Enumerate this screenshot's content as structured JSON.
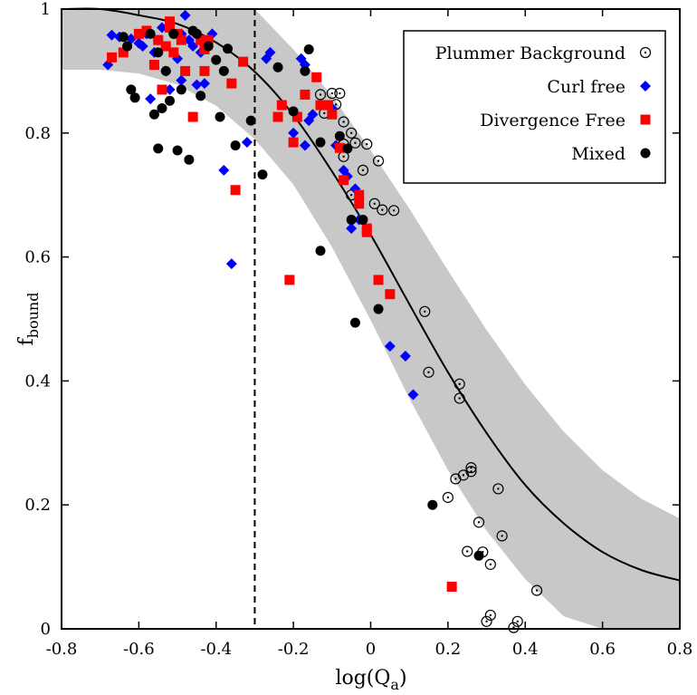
{
  "chart_data": {
    "type": "scatter",
    "xlabel_main": "log(Q",
    "xlabel_sub": "a",
    "xlabel_close": ")",
    "ylabel_main": "f",
    "ylabel_sub": "bound",
    "xlim": [
      -0.8,
      0.8
    ],
    "ylim": [
      0,
      1
    ],
    "x_ticks": [
      "-0.8",
      "-0.6",
      "-0.4",
      "-0.2",
      "0",
      "0.2",
      "0.4",
      "0.6",
      "0.8"
    ],
    "y_ticks": [
      "0",
      "0.2",
      "0.4",
      "0.6",
      "0.8",
      "1"
    ],
    "grid": false,
    "legend_position": "top-right",
    "vertical_line_x": -0.3,
    "fit_curve": {
      "description": "model curve with shaded uncertainty band",
      "x": [
        -0.8,
        -0.7,
        -0.6,
        -0.5,
        -0.4,
        -0.3,
        -0.2,
        -0.1,
        0.0,
        0.1,
        0.2,
        0.3,
        0.4,
        0.5,
        0.6,
        0.7,
        0.8
      ],
      "y": [
        1.0,
        1.0,
        0.99,
        0.976,
        0.946,
        0.899,
        0.829,
        0.738,
        0.636,
        0.524,
        0.414,
        0.316,
        0.232,
        0.17,
        0.124,
        0.095,
        0.078
      ],
      "band_upper": [
        1.0,
        1.0,
        1.0,
        1.0,
        1.0,
        1.0,
        0.935,
        0.86,
        0.772,
        0.678,
        0.578,
        0.482,
        0.394,
        0.318,
        0.256,
        0.21,
        0.178
      ],
      "band_lower": [
        0.902,
        0.902,
        0.896,
        0.878,
        0.844,
        0.79,
        0.717,
        0.616,
        0.498,
        0.372,
        0.256,
        0.158,
        0.08,
        0.02,
        0.0,
        0.0,
        0.0
      ],
      "color": "#000000",
      "band_color": "#c8c8c8"
    },
    "series": [
      {
        "name": "Plummer Background",
        "marker": "circle-dot",
        "color": "#000000",
        "points": [
          [
            -0.13,
            0.862
          ],
          [
            -0.1,
            0.864
          ],
          [
            -0.08,
            0.864
          ],
          [
            -0.09,
            0.846
          ],
          [
            -0.12,
            0.832
          ],
          [
            -0.07,
            0.818
          ],
          [
            -0.05,
            0.8
          ],
          [
            -0.07,
            0.782
          ],
          [
            -0.04,
            0.784
          ],
          [
            -0.01,
            0.782
          ],
          [
            -0.07,
            0.762
          ],
          [
            0.02,
            0.755
          ],
          [
            -0.02,
            0.74
          ],
          [
            -0.05,
            0.7
          ],
          [
            0.01,
            0.686
          ],
          [
            0.03,
            0.676
          ],
          [
            0.06,
            0.675
          ],
          [
            0.14,
            0.512
          ],
          [
            0.15,
            0.414
          ],
          [
            0.23,
            0.395
          ],
          [
            0.23,
            0.372
          ],
          [
            0.26,
            0.26
          ],
          [
            0.26,
            0.254
          ],
          [
            0.24,
            0.248
          ],
          [
            0.22,
            0.242
          ],
          [
            0.33,
            0.226
          ],
          [
            0.2,
            0.212
          ],
          [
            0.28,
            0.172
          ],
          [
            0.34,
            0.15
          ],
          [
            0.25,
            0.125
          ],
          [
            0.29,
            0.124
          ],
          [
            0.31,
            0.104
          ],
          [
            0.43,
            0.062
          ],
          [
            0.31,
            0.022
          ],
          [
            0.3,
            0.012
          ],
          [
            0.38,
            0.012
          ],
          [
            0.37,
            0.002
          ]
        ]
      },
      {
        "name": "Curl free",
        "marker": "diamond",
        "color": "#0000ff",
        "points": [
          [
            -0.68,
            0.91
          ],
          [
            -0.67,
            0.958
          ],
          [
            -0.65,
            0.955
          ],
          [
            -0.62,
            0.952
          ],
          [
            -0.6,
            0.945
          ],
          [
            -0.58,
            0.96
          ],
          [
            -0.56,
            0.93
          ],
          [
            -0.55,
            0.95
          ],
          [
            -0.54,
            0.97
          ],
          [
            -0.53,
            0.9
          ],
          [
            -0.52,
            0.87
          ],
          [
            -0.5,
            0.92
          ],
          [
            -0.49,
            0.885
          ],
          [
            -0.48,
            0.99
          ],
          [
            -0.47,
            0.95
          ],
          [
            -0.46,
            0.94
          ],
          [
            -0.45,
            0.878
          ],
          [
            -0.44,
            0.93
          ],
          [
            -0.43,
            0.88
          ],
          [
            -0.41,
            0.96
          ],
          [
            -0.59,
            0.94
          ],
          [
            -0.57,
            0.855
          ],
          [
            -0.51,
            0.96
          ],
          [
            -0.49,
            0.96
          ],
          [
            -0.38,
            0.74
          ],
          [
            -0.36,
            0.589
          ],
          [
            -0.32,
            0.785
          ],
          [
            -0.27,
            0.92
          ],
          [
            -0.26,
            0.93
          ],
          [
            -0.2,
            0.8
          ],
          [
            -0.18,
            0.92
          ],
          [
            -0.17,
            0.91
          ],
          [
            -0.16,
            0.82
          ],
          [
            -0.15,
            0.83
          ],
          [
            -0.17,
            0.78
          ],
          [
            -0.1,
            0.84
          ],
          [
            -0.09,
            0.78
          ],
          [
            -0.07,
            0.74
          ],
          [
            -0.06,
            0.73
          ],
          [
            -0.05,
            0.646
          ],
          [
            -0.04,
            0.71
          ],
          [
            -0.03,
            0.66
          ],
          [
            0.05,
            0.456
          ],
          [
            0.09,
            0.44
          ],
          [
            0.11,
            0.378
          ]
        ]
      },
      {
        "name": "Divergence Free",
        "marker": "square",
        "color": "#ff0000",
        "points": [
          [
            -0.67,
            0.922
          ],
          [
            -0.64,
            0.93
          ],
          [
            -0.6,
            0.96
          ],
          [
            -0.58,
            0.965
          ],
          [
            -0.56,
            0.91
          ],
          [
            -0.55,
            0.95
          ],
          [
            -0.54,
            0.87
          ],
          [
            -0.53,
            0.94
          ],
          [
            -0.52,
            0.97
          ],
          [
            -0.52,
            0.98
          ],
          [
            -0.51,
            0.93
          ],
          [
            -0.5,
            0.96
          ],
          [
            -0.49,
            0.95
          ],
          [
            -0.48,
            0.9
          ],
          [
            -0.46,
            0.826
          ],
          [
            -0.44,
            0.95
          ],
          [
            -0.43,
            0.935
          ],
          [
            -0.42,
            0.95
          ],
          [
            -0.43,
            0.9
          ],
          [
            -0.36,
            0.88
          ],
          [
            -0.35,
            0.708
          ],
          [
            -0.33,
            0.915
          ],
          [
            -0.24,
            0.826
          ],
          [
            -0.23,
            0.845
          ],
          [
            -0.21,
            0.563
          ],
          [
            -0.2,
            0.785
          ],
          [
            -0.19,
            0.826
          ],
          [
            -0.17,
            0.862
          ],
          [
            -0.14,
            0.89
          ],
          [
            -0.13,
            0.845
          ],
          [
            -0.11,
            0.845
          ],
          [
            -0.1,
            0.83
          ],
          [
            -0.08,
            0.776
          ],
          [
            -0.07,
            0.724
          ],
          [
            -0.03,
            0.7
          ],
          [
            -0.03,
            0.686
          ],
          [
            -0.01,
            0.646
          ],
          [
            -0.01,
            0.64
          ],
          [
            0.02,
            0.563
          ],
          [
            0.05,
            0.54
          ],
          [
            0.21,
            0.068
          ]
        ]
      },
      {
        "name": "Mixed",
        "marker": "filled-circle",
        "color": "#000000",
        "points": [
          [
            -0.64,
            0.955
          ],
          [
            -0.63,
            0.94
          ],
          [
            -0.62,
            0.87
          ],
          [
            -0.61,
            0.857
          ],
          [
            -0.57,
            0.96
          ],
          [
            -0.56,
            0.83
          ],
          [
            -0.55,
            0.775
          ],
          [
            -0.55,
            0.93
          ],
          [
            -0.54,
            0.84
          ],
          [
            -0.53,
            0.9
          ],
          [
            -0.52,
            0.852
          ],
          [
            -0.51,
            0.96
          ],
          [
            -0.5,
            0.772
          ],
          [
            -0.49,
            0.87
          ],
          [
            -0.47,
            0.757
          ],
          [
            -0.46,
            0.965
          ],
          [
            -0.45,
            0.96
          ],
          [
            -0.44,
            0.86
          ],
          [
            -0.42,
            0.94
          ],
          [
            -0.4,
            0.918
          ],
          [
            -0.39,
            0.826
          ],
          [
            -0.38,
            0.9
          ],
          [
            -0.37,
            0.936
          ],
          [
            -0.35,
            0.78
          ],
          [
            -0.31,
            0.82
          ],
          [
            -0.28,
            0.733
          ],
          [
            -0.24,
            0.906
          ],
          [
            -0.2,
            0.835
          ],
          [
            -0.17,
            0.9
          ],
          [
            -0.16,
            0.935
          ],
          [
            -0.13,
            0.61
          ],
          [
            -0.13,
            0.785
          ],
          [
            -0.08,
            0.795
          ],
          [
            -0.06,
            0.775
          ],
          [
            -0.05,
            0.66
          ],
          [
            -0.04,
            0.494
          ],
          [
            -0.02,
            0.66
          ],
          [
            0.02,
            0.516
          ],
          [
            0.16,
            0.2
          ],
          [
            0.28,
            0.118
          ]
        ]
      }
    ]
  }
}
